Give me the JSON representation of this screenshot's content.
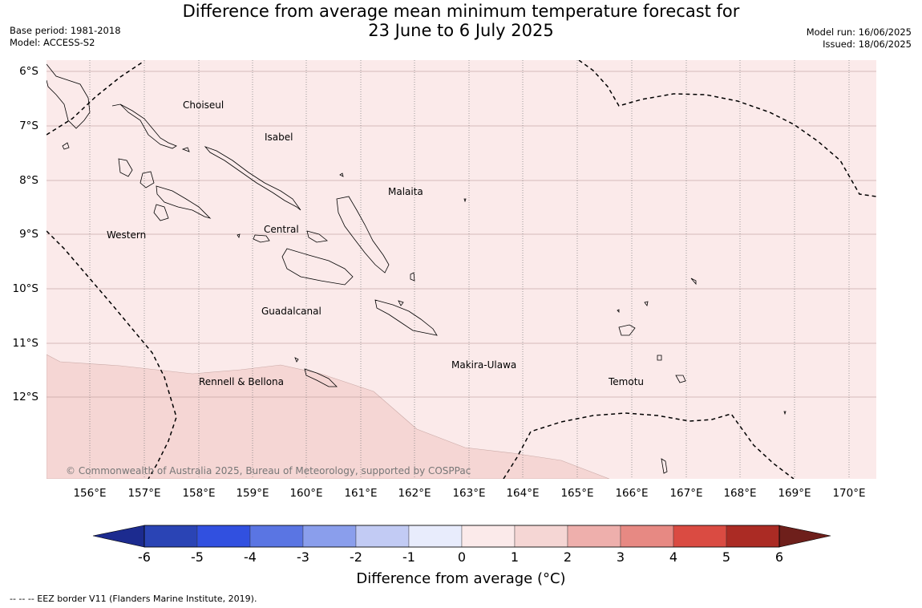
{
  "title_line1": "Difference from average mean minimum temperature forecast for",
  "title_line2": "23 June to 6 July 2025",
  "base_period": "Base period: 1981-2018",
  "model": "Model: ACCESS-S2",
  "model_run": "Model run: 16/06/2025",
  "issued": "Issued: 18/06/2025",
  "lat_labels": [
    "6°S",
    "7°S",
    "8°S",
    "9°S",
    "10°S",
    "11°S",
    "12°S"
  ],
  "lon_labels": [
    "156°E",
    "157°E",
    "158°E",
    "159°E",
    "160°E",
    "161°E",
    "162°E",
    "163°E",
    "164°E",
    "165°E",
    "166°E",
    "167°E",
    "168°E",
    "169°E",
    "170°E"
  ],
  "regions": {
    "choiseul": "Choiseul",
    "isabel": "Isabel",
    "malaita": "Malaita",
    "western": "Western",
    "central": "Central",
    "guadalcanal": "Guadalcanal",
    "makira_ulawa": "Makira-Ulawa",
    "temotu": "Temotu",
    "rennell_bellona": "Rennell & Bellona"
  },
  "copyright": "© Commonwealth of Australia 2025, Bureau of Meteorology, supported by COSPPac",
  "colorbar": {
    "ticks": [
      "-6",
      "-5",
      "-4",
      "-3",
      "-2",
      "-1",
      "0",
      "1",
      "2",
      "3",
      "4",
      "5",
      "6"
    ],
    "colors": [
      "#1c2b8f",
      "#2a44b5",
      "#3150e0",
      "#5a75e3",
      "#8a9eec",
      "#c2cbf4",
      "#e8ecfc",
      "#fbeaea",
      "#f5d6d4",
      "#eeafac",
      "#e78983",
      "#da4b42",
      "#ab2b24",
      "#6e1f1b"
    ],
    "label": "Difference from average (°C)"
  },
  "map_fill_colors": {
    "range_0_1": "#fbeaea",
    "range_1_2": "#f5d6d4",
    "coastline": "#000000",
    "eez_border": "#000000"
  },
  "footnote": "-- -- -- EEZ border V11 (Flanders Marine Institute, 2019)."
}
